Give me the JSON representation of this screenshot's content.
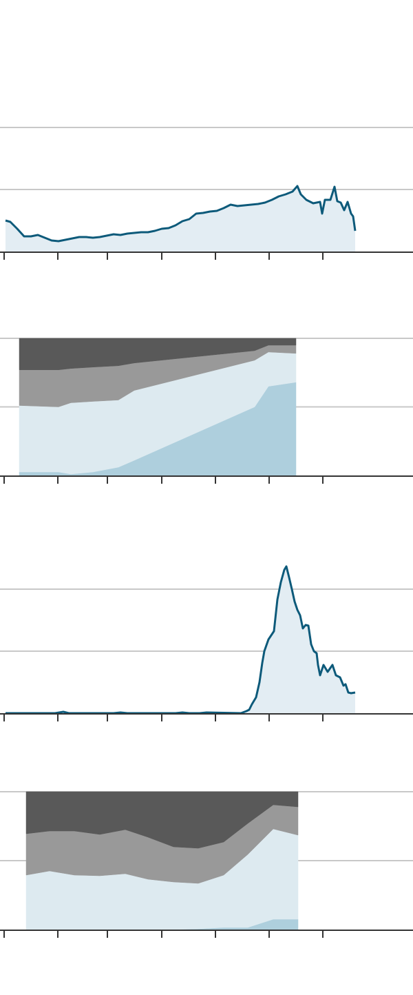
{
  "chart_data": [
    {
      "type": "line",
      "color": "#0d5a7a",
      "area_color": "#e3edf3",
      "x": [
        8,
        15,
        25,
        35,
        45,
        55,
        65,
        75,
        85,
        95,
        105,
        115,
        125,
        135,
        145,
        155,
        165,
        175,
        185,
        195,
        205,
        215,
        225,
        235,
        245,
        255,
        265,
        275,
        285,
        295,
        305,
        315,
        325,
        335,
        345,
        355,
        365,
        375,
        385,
        395,
        405,
        415,
        425,
        432,
        437,
        445,
        455,
        465,
        468,
        472,
        480,
        486,
        490,
        495,
        500,
        505,
        510,
        513,
        516
      ],
      "values": [
        45,
        43,
        33,
        22,
        22,
        24,
        20,
        16,
        15,
        17,
        19,
        21,
        21,
        20,
        21,
        23,
        25,
        24,
        26,
        27,
        28,
        28,
        30,
        33,
        34,
        38,
        44,
        47,
        55,
        56,
        58,
        59,
        63,
        68,
        66,
        67,
        68,
        69,
        71,
        75,
        80,
        83,
        87,
        95,
        83,
        75,
        70,
        72,
        55,
        75,
        75,
        94,
        73,
        71,
        60,
        72,
        55,
        51,
        30
      ],
      "xlim": [
        0,
        600
      ],
      "xticks": [
        6,
        84,
        156,
        235,
        313,
        391,
        469
      ],
      "ylim": [
        0,
        270
      ],
      "yticks": [
        90,
        180
      ],
      "grid": true
    },
    {
      "type": "area",
      "stacked": true,
      "x": [
        28,
        85,
        103,
        135,
        172,
        195,
        370,
        390,
        430
      ],
      "series": [
        {
          "color": "#aecfdd",
          "values": [
            2.5,
            2.5,
            1,
            2.5,
            6,
            11,
            50,
            65,
            68
          ]
        },
        {
          "color": "#ddeaf0",
          "values": [
            48.5,
            47.5,
            52,
            51.5,
            49,
            51,
            34,
            25,
            21
          ]
        },
        {
          "color": "#999999",
          "values": [
            26,
            27,
            25,
            25,
            25,
            20,
            7,
            5,
            6
          ]
        },
        {
          "color": "#595959",
          "values": [
            23,
            23,
            22,
            21,
            20,
            18,
            9,
            5,
            5
          ]
        }
      ],
      "xlim": [
        0,
        600
      ],
      "xticks": [
        6,
        84,
        156,
        235,
        313,
        391,
        469
      ],
      "ylim": [
        0,
        100
      ],
      "yticks": [
        50,
        100
      ],
      "grid": true
    },
    {
      "type": "line",
      "color": "#0d5a7a",
      "area_color": "#e3edf3",
      "x": [
        8,
        80,
        92,
        100,
        165,
        175,
        185,
        255,
        265,
        275,
        290,
        300,
        350,
        358,
        362,
        366,
        372,
        377,
        381,
        384,
        390,
        398,
        403,
        408,
        413,
        416,
        420,
        424,
        428,
        432,
        436,
        440,
        444,
        448,
        452,
        456,
        460,
        462,
        465,
        470,
        476,
        483,
        488,
        494,
        499,
        502,
        506,
        510,
        516
      ],
      "values": [
        0,
        0,
        2,
        0,
        0,
        1,
        0,
        0,
        1,
        0,
        0,
        1,
        0,
        3,
        5,
        13,
        23,
        45,
        73,
        90,
        107,
        119,
        165,
        190,
        208,
        213,
        197,
        180,
        162,
        150,
        142,
        123,
        128,
        127,
        100,
        90,
        87,
        70,
        55,
        70,
        60,
        70,
        55,
        52,
        40,
        42,
        30,
        29,
        30
      ],
      "xlim": [
        0,
        600
      ],
      "xticks": [
        6,
        84,
        156,
        235,
        313,
        391,
        469
      ],
      "ylim": [
        0,
        270
      ],
      "yticks": [
        90,
        180
      ],
      "grid": true
    },
    {
      "type": "area",
      "stacked": true,
      "x": [
        38,
        72,
        108,
        145,
        182,
        215,
        252,
        288,
        325,
        360,
        397,
        433
      ],
      "series": [
        {
          "color": "#aecfdd",
          "values": [
            0,
            0,
            0,
            0,
            0,
            0,
            0,
            0.5,
            1.5,
            1.5,
            7.5,
            7.5
          ]
        },
        {
          "color": "#ddeaf0",
          "values": [
            39.5,
            42.5,
            39.5,
            39,
            40.5,
            36.5,
            34.5,
            33,
            38,
            53,
            65.5,
            61
          ]
        },
        {
          "color": "#999999",
          "values": [
            30,
            29,
            32,
            30,
            32,
            30.5,
            25.5,
            25.5,
            24,
            22.5,
            17.5,
            20.5
          ]
        },
        {
          "color": "#595959",
          "values": [
            30.5,
            28.5,
            28.5,
            31,
            27.5,
            33,
            40,
            41,
            36.5,
            23,
            9.5,
            11
          ]
        }
      ],
      "xlim": [
        0,
        600
      ],
      "xticks": [
        6,
        84,
        156,
        235,
        313,
        391,
        469
      ],
      "ylim": [
        0,
        100
      ],
      "yticks": [
        50,
        100
      ],
      "grid": true
    }
  ]
}
